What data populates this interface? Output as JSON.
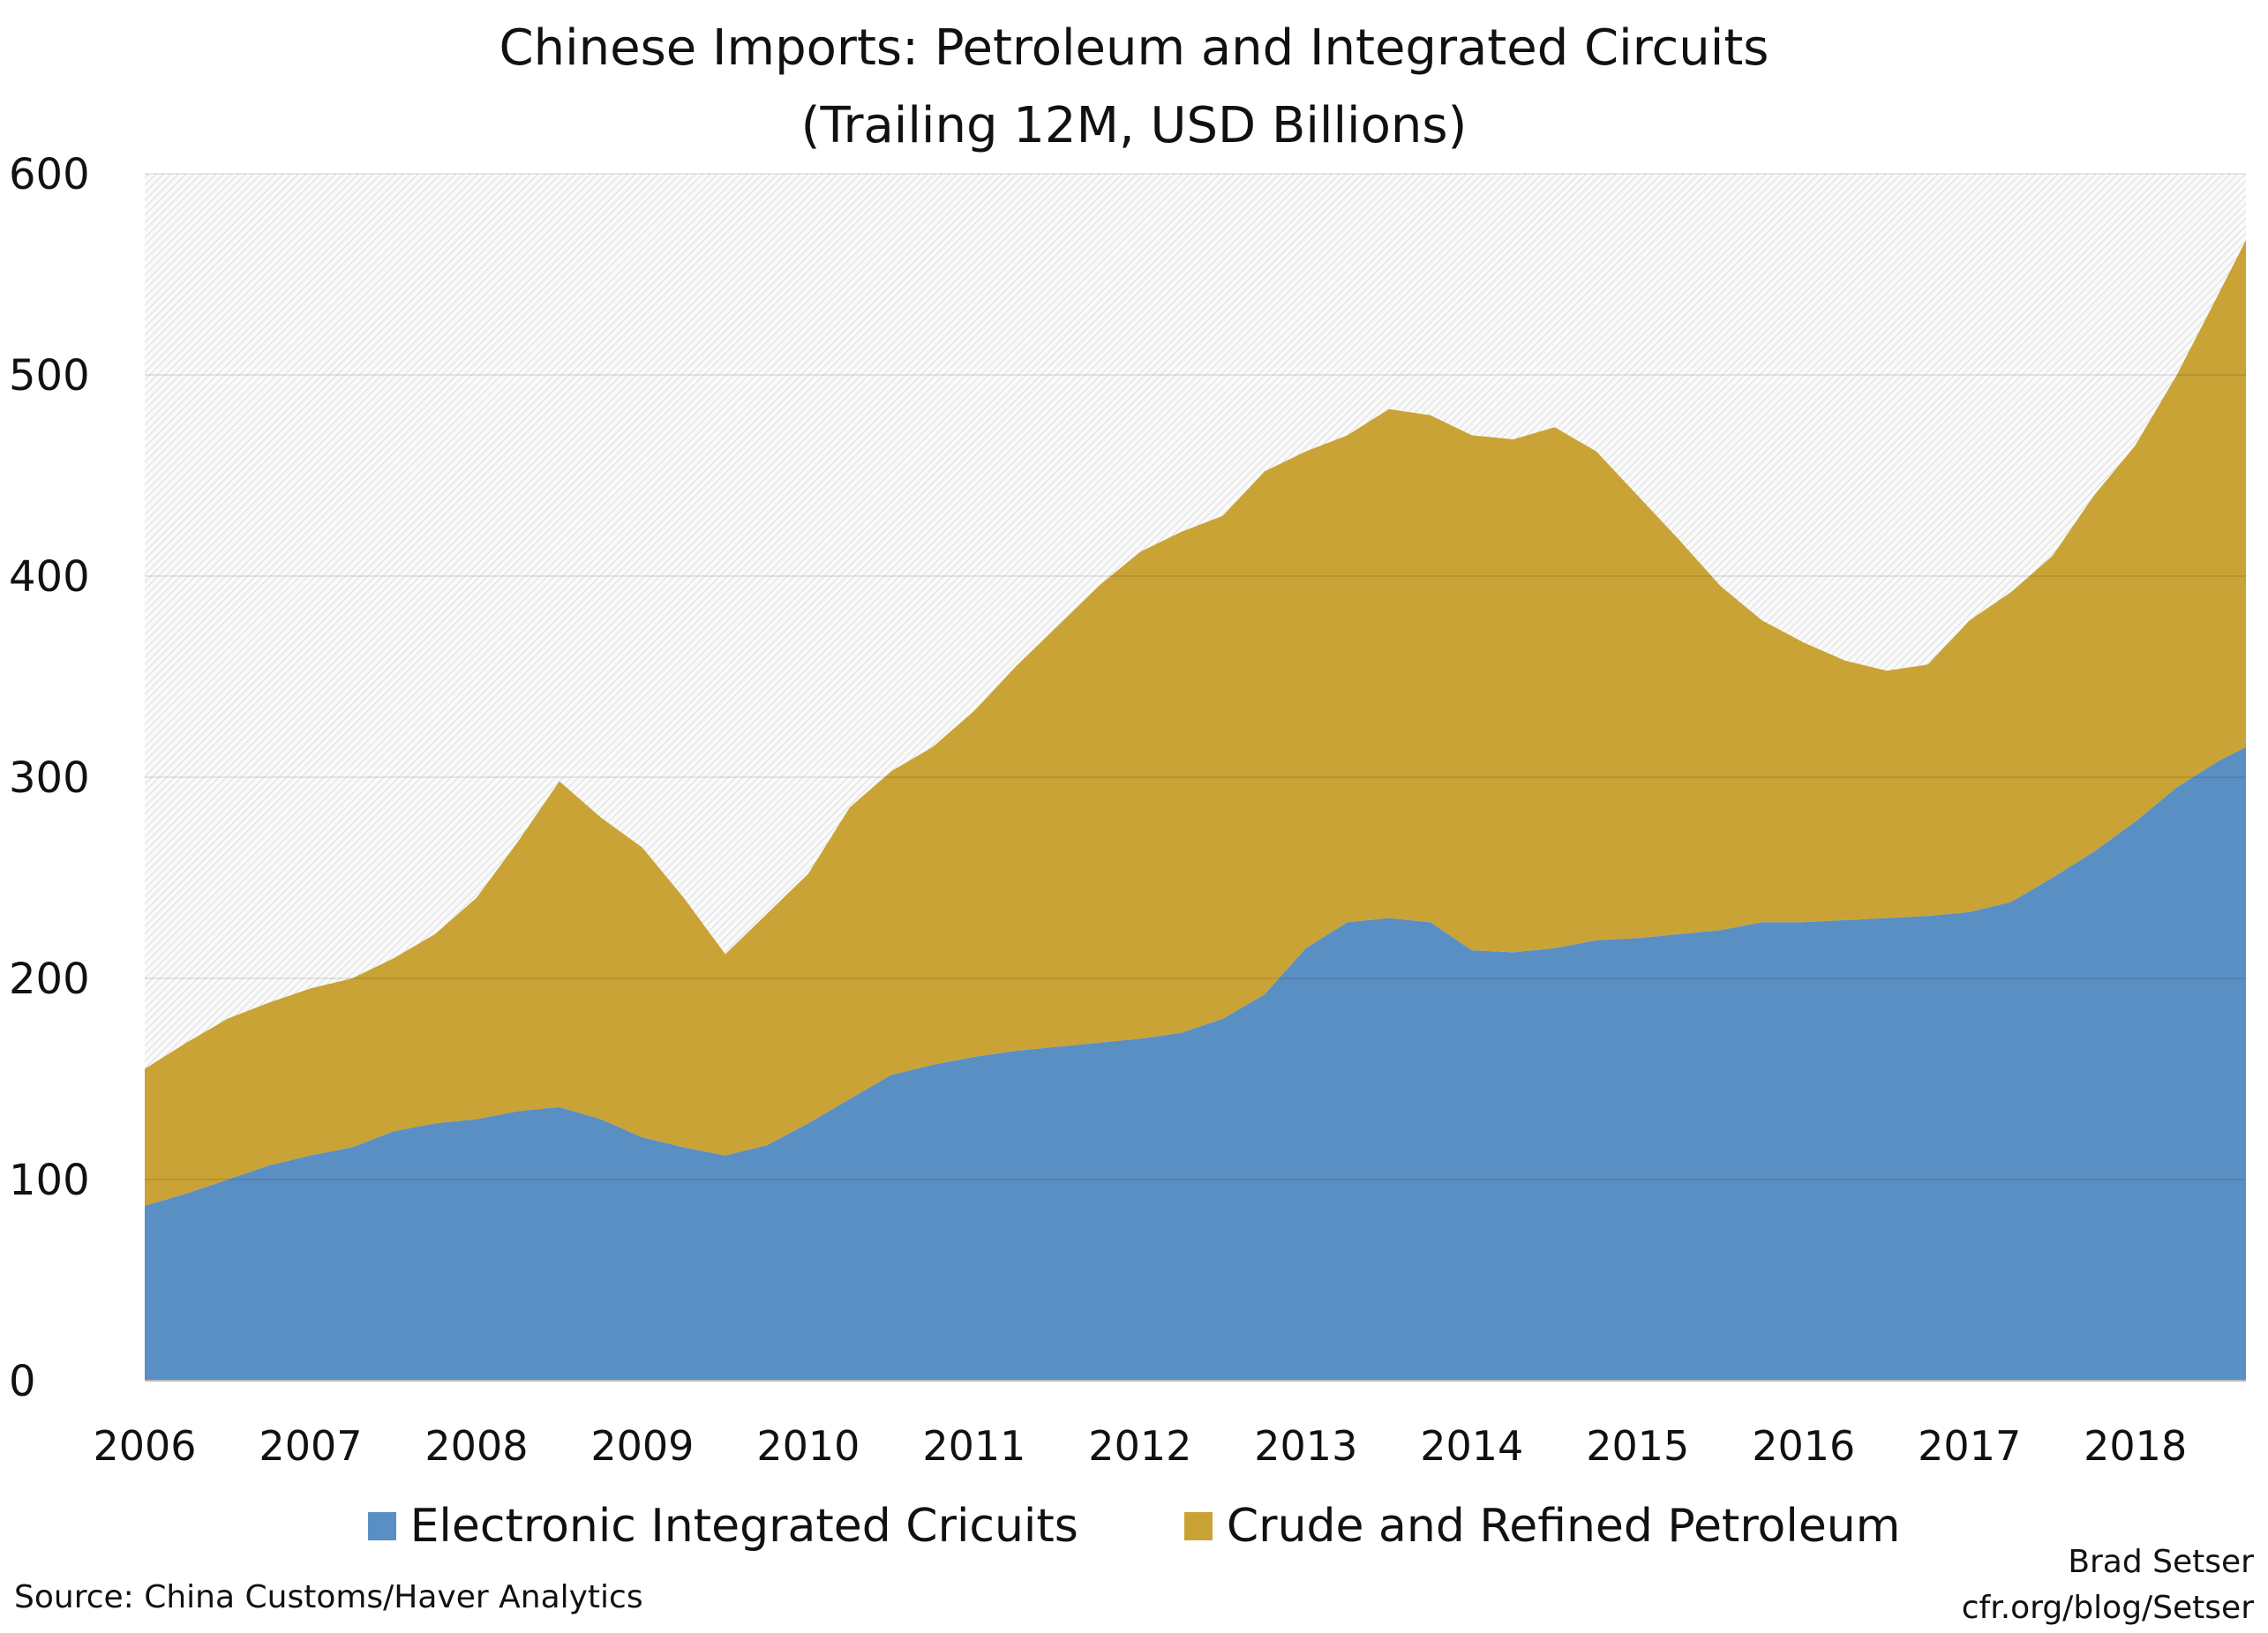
{
  "chart_data": {
    "type": "area",
    "stacked": true,
    "title": "Chinese Imports: Petroleum and Integrated Circuits",
    "subtitle": "(Trailing 12M, USD Billions)",
    "xlabel": "",
    "ylabel": "",
    "ylim": [
      0,
      600
    ],
    "yticks": [
      0,
      100,
      200,
      300,
      400,
      500,
      600
    ],
    "xticks": [
      "2006",
      "2007",
      "2008",
      "2009",
      "2010",
      "2011",
      "2012",
      "2013",
      "2014",
      "2015",
      "2016",
      "2017",
      "2018"
    ],
    "grid": true,
    "legend": "bottom",
    "x": [
      "2006-01",
      "2006-04",
      "2006-07",
      "2006-10",
      "2007-01",
      "2007-04",
      "2007-07",
      "2007-10",
      "2008-01",
      "2008-04",
      "2008-07",
      "2008-10",
      "2009-01",
      "2009-04",
      "2009-07",
      "2009-10",
      "2010-01",
      "2010-04",
      "2010-07",
      "2010-10",
      "2011-01",
      "2011-04",
      "2011-07",
      "2011-10",
      "2012-01",
      "2012-04",
      "2012-07",
      "2012-10",
      "2013-01",
      "2013-04",
      "2013-07",
      "2013-10",
      "2014-01",
      "2014-04",
      "2014-07",
      "2014-10",
      "2015-01",
      "2015-04",
      "2015-07",
      "2015-10",
      "2016-01",
      "2016-04",
      "2016-07",
      "2016-10",
      "2017-01",
      "2017-04",
      "2017-07",
      "2017-10",
      "2018-01",
      "2018-04",
      "2018-07",
      "2018-09"
    ],
    "series": [
      {
        "name": "Electronic Integrated Cricuits",
        "color": "#5a8fc4",
        "values": [
          87,
          93,
          100,
          107,
          112,
          116,
          124,
          128,
          130,
          134,
          136,
          130,
          121,
          116,
          112,
          117,
          128,
          140,
          152,
          157,
          161,
          164,
          166,
          168,
          170,
          173,
          180,
          192,
          215,
          228,
          230,
          228,
          214,
          213,
          215,
          219,
          220,
          222,
          224,
          228,
          228,
          229,
          230,
          231,
          233,
          238,
          250,
          263,
          278,
          295,
          308,
          315
        ]
      },
      {
        "name": "Crude and Refined Petroleum",
        "color": "#c9a336",
        "values": [
          68,
          75,
          80,
          81,
          83,
          84,
          86,
          94,
          110,
          134,
          162,
          150,
          144,
          124,
          100,
          115,
          124,
          145,
          151,
          158,
          172,
          191,
          209,
          227,
          242,
          249,
          250,
          260,
          247,
          242,
          253,
          252,
          256,
          255,
          259,
          243,
          220,
          196,
          171,
          150,
          139,
          129,
          123,
          125,
          145,
          154,
          160,
          177,
          187,
          205,
          232,
          252
        ]
      }
    ]
  },
  "source": "Source: China Customs/Haver Analytics",
  "credit": {
    "author": "Brad Setser",
    "url": "cfr.org/blog/Setser"
  }
}
